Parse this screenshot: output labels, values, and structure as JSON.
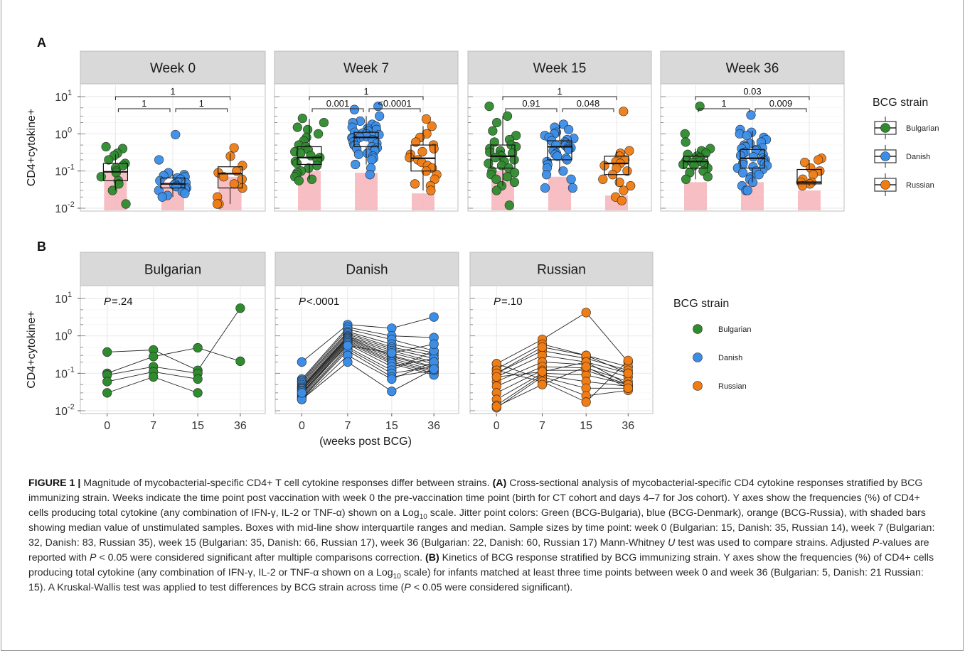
{
  "figure": {
    "panel_a_label": "A",
    "panel_b_label": "B",
    "ylabel": "CD4+cytokine+",
    "xlabel_b": "(weeks post BCG)",
    "y_ticks": [
      "10",
      "10",
      "10",
      "10"
    ],
    "y_tick_exponents": [
      "1",
      "0",
      "-1",
      "-2"
    ],
    "legend_title": "BCG strain",
    "legend_items": [
      "Bulgarian",
      "Danish",
      "Russian"
    ],
    "colors": {
      "Bulgarian": "#2e8b2e",
      "Danish": "#3b8ee8",
      "Russian": "#f07c12",
      "strip_bg": "#d9d9d9",
      "panel_border": "#bdbdbd",
      "median_bar": "#f6b8bd",
      "grid": "#ebebeb"
    }
  },
  "chart_data": [
    {
      "type": "scatter",
      "subtype": "boxplot-jitter",
      "panel": "A",
      "facet": "Week 0",
      "yscale": "log10",
      "ylim": [
        0.01,
        10
      ],
      "unstim_median_bar": [
        0.1,
        0.05,
        0.07
      ],
      "box": {
        "Bulgarian": {
          "q1": 0.055,
          "med": 0.095,
          "q3": 0.16,
          "lo": 0.03,
          "hi": 0.28
        },
        "Danish": {
          "q1": 0.035,
          "med": 0.045,
          "q3": 0.065,
          "lo": 0.02,
          "hi": 0.1
        },
        "Russian": {
          "q1": 0.035,
          "med": 0.085,
          "q3": 0.13,
          "lo": 0.013,
          "hi": 0.3
        }
      },
      "points": {
        "Bulgarian": [
          0.45,
          0.4,
          0.3,
          0.26,
          0.2,
          0.16,
          0.14,
          0.12,
          0.1,
          0.09,
          0.07,
          0.055,
          0.045,
          0.03,
          0.013
        ],
        "Danish": [
          0.95,
          0.2,
          0.09,
          0.08,
          0.075,
          0.07,
          0.065,
          0.06,
          0.055,
          0.05,
          0.048,
          0.045,
          0.042,
          0.04,
          0.038,
          0.035,
          0.033,
          0.03,
          0.028,
          0.025,
          0.022,
          0.02
        ],
        "Russian": [
          0.42,
          0.25,
          0.14,
          0.1,
          0.09,
          0.07,
          0.06,
          0.045,
          0.035,
          0.02,
          0.013,
          0.013
        ]
      },
      "comparisons": [
        {
          "groups": [
            "Bulgarian",
            "Danish"
          ],
          "p": "1"
        },
        {
          "groups": [
            "Danish",
            "Russian"
          ],
          "p": "1"
        },
        {
          "groups": [
            "Bulgarian",
            "Russian"
          ],
          "p": "1"
        }
      ]
    },
    {
      "type": "scatter",
      "subtype": "boxplot-jitter",
      "panel": "A",
      "facet": "Week 7",
      "yscale": "log10",
      "ylim": [
        0.01,
        10
      ],
      "unstim_median_bar": [
        0.1,
        0.09,
        0.025
      ],
      "box": {
        "Bulgarian": {
          "q1": 0.15,
          "med": 0.23,
          "q3": 0.45,
          "lo": 0.06,
          "hi": 2.5
        },
        "Danish": {
          "q1": 0.45,
          "med": 0.8,
          "q3": 1.1,
          "lo": 0.15,
          "hi": 3.0
        },
        "Russian": {
          "q1": 0.1,
          "med": 0.22,
          "q3": 0.5,
          "lo": 0.03,
          "hi": 1.6
        }
      },
      "points": {
        "Bulgarian": [
          2.6,
          2.0,
          1.5,
          1.3,
          1.0,
          0.8,
          0.65,
          0.5,
          0.45,
          0.38,
          0.33,
          0.3,
          0.26,
          0.23,
          0.2,
          0.18,
          0.16,
          0.14,
          0.12,
          0.1,
          0.09,
          0.08,
          0.07,
          0.06,
          0.055
        ],
        "Danish": [
          5.5,
          4.5,
          3.0,
          2.2,
          2.0,
          1.8,
          1.6,
          1.5,
          1.4,
          1.3,
          1.2,
          1.1,
          1.05,
          1.0,
          0.95,
          0.9,
          0.85,
          0.8,
          0.78,
          0.75,
          0.7,
          0.65,
          0.6,
          0.55,
          0.5,
          0.48,
          0.45,
          0.42,
          0.4,
          0.38,
          0.35,
          0.3,
          0.28,
          0.25,
          0.22,
          0.2,
          0.15,
          0.12,
          0.08
        ],
        "Russian": [
          2.5,
          1.6,
          1.0,
          0.8,
          0.6,
          0.5,
          0.4,
          0.33,
          0.28,
          0.23,
          0.2,
          0.17,
          0.14,
          0.12,
          0.1,
          0.08,
          0.06,
          0.045,
          0.04,
          0.03
        ]
      },
      "comparisons": [
        {
          "groups": [
            "Bulgarian",
            "Danish"
          ],
          "p": "0.001"
        },
        {
          "groups": [
            "Danish",
            "Russian"
          ],
          "p": "<0.0001"
        },
        {
          "groups": [
            "Bulgarian",
            "Russian"
          ],
          "p": "1"
        }
      ]
    },
    {
      "type": "scatter",
      "subtype": "boxplot-jitter",
      "panel": "A",
      "facet": "Week 15",
      "yscale": "log10",
      "ylim": [
        0.01,
        10
      ],
      "unstim_median_bar": [
        0.1,
        0.07,
        0.022
      ],
      "box": {
        "Bulgarian": {
          "q1": 0.12,
          "med": 0.25,
          "q3": 0.5,
          "lo": 0.04,
          "hi": 3.0
        },
        "Danish": {
          "q1": 0.2,
          "med": 0.45,
          "q3": 0.65,
          "lo": 0.1,
          "hi": 1.7
        },
        "Russian": {
          "q1": 0.08,
          "med": 0.16,
          "q3": 0.25,
          "lo": 0.04,
          "hi": 0.35
        }
      },
      "points": {
        "Bulgarian": [
          5.5,
          3.0,
          2.0,
          1.2,
          0.9,
          0.7,
          0.6,
          0.5,
          0.45,
          0.4,
          0.35,
          0.32,
          0.3,
          0.27,
          0.25,
          0.23,
          0.2,
          0.18,
          0.16,
          0.14,
          0.12,
          0.1,
          0.09,
          0.08,
          0.07,
          0.06,
          0.05,
          0.04,
          0.03,
          0.012
        ],
        "Danish": [
          1.8,
          1.5,
          1.3,
          1.1,
          1.0,
          0.9,
          0.8,
          0.75,
          0.7,
          0.65,
          0.6,
          0.55,
          0.5,
          0.48,
          0.45,
          0.42,
          0.4,
          0.38,
          0.35,
          0.3,
          0.28,
          0.25,
          0.22,
          0.2,
          0.18,
          0.15,
          0.12,
          0.1,
          0.08,
          0.06,
          0.035,
          0.035
        ],
        "Russian": [
          4.0,
          0.35,
          0.3,
          0.25,
          0.2,
          0.18,
          0.16,
          0.14,
          0.12,
          0.1,
          0.08,
          0.06,
          0.05,
          0.04,
          0.03,
          0.02,
          0.016
        ]
      },
      "comparisons": [
        {
          "groups": [
            "Bulgarian",
            "Danish"
          ],
          "p": "0.91"
        },
        {
          "groups": [
            "Danish",
            "Russian"
          ],
          "p": "0.048"
        },
        {
          "groups": [
            "Bulgarian",
            "Russian"
          ],
          "p": "1"
        }
      ]
    },
    {
      "type": "scatter",
      "subtype": "boxplot-jitter",
      "panel": "A",
      "facet": "Week 36",
      "yscale": "log10",
      "ylim": [
        0.01,
        10
      ],
      "unstim_median_bar": [
        0.05,
        0.05,
        0.03
      ],
      "box": {
        "Bulgarian": {
          "q1": 0.12,
          "med": 0.18,
          "q3": 0.25,
          "lo": 0.06,
          "hi": 0.4
        },
        "Danish": {
          "q1": 0.12,
          "med": 0.22,
          "q3": 0.38,
          "lo": 0.05,
          "hi": 1.2
        },
        "Russian": {
          "q1": 0.045,
          "med": 0.05,
          "q3": 0.11,
          "lo": 0.04,
          "hi": 0.2
        }
      },
      "points": {
        "Bulgarian": [
          5.5,
          1.0,
          0.6,
          0.4,
          0.35,
          0.3,
          0.28,
          0.25,
          0.23,
          0.22,
          0.2,
          0.19,
          0.18,
          0.17,
          0.16,
          0.15,
          0.14,
          0.12,
          0.1,
          0.09,
          0.07,
          0.06
        ],
        "Danish": [
          3.2,
          1.3,
          1.1,
          1.0,
          0.9,
          0.8,
          0.7,
          0.6,
          0.55,
          0.5,
          0.45,
          0.42,
          0.4,
          0.38,
          0.35,
          0.32,
          0.3,
          0.28,
          0.26,
          0.24,
          0.22,
          0.2,
          0.19,
          0.18,
          0.17,
          0.16,
          0.15,
          0.14,
          0.13,
          0.12,
          0.11,
          0.1,
          0.09,
          0.08,
          0.07,
          0.06,
          0.05,
          0.04,
          0.03,
          0.03
        ],
        "Russian": [
          0.22,
          0.2,
          0.17,
          0.12,
          0.1,
          0.08,
          0.06,
          0.05,
          0.05,
          0.045,
          0.04
        ]
      },
      "comparisons": [
        {
          "groups": [
            "Bulgarian",
            "Danish"
          ],
          "p": "1"
        },
        {
          "groups": [
            "Danish",
            "Russian"
          ],
          "p": "0.009"
        },
        {
          "groups": [
            "Bulgarian",
            "Russian"
          ],
          "p": "0.03"
        }
      ]
    },
    {
      "type": "line",
      "panel": "B",
      "facet": "Bulgarian",
      "p_label": "P",
      "p_value": "=.24",
      "x": [
        0,
        7,
        15,
        36
      ],
      "yscale": "log10",
      "ylim": [
        0.01,
        10
      ],
      "series": [
        {
          "values": [
            0.37,
            0.42,
            0.12,
            5.5
          ]
        },
        {
          "values": [
            0.1,
            0.28,
            0.48,
            0.21
          ]
        },
        {
          "values": [
            0.09,
            0.15,
            0.1,
            null
          ]
        },
        {
          "values": [
            0.06,
            0.11,
            0.07,
            null
          ]
        },
        {
          "values": [
            0.03,
            0.08,
            0.03,
            null
          ]
        }
      ]
    },
    {
      "type": "line",
      "panel": "B",
      "facet": "Danish",
      "p_label": "P",
      "p_value": "<.0001",
      "x": [
        0,
        7,
        15,
        36
      ],
      "yscale": "log10",
      "ylim": [
        0.01,
        10
      ],
      "series": [
        {
          "values": [
            0.2,
            2.0,
            1.6,
            3.2
          ]
        },
        {
          "values": [
            0.07,
            1.7,
            1.0,
            0.9
          ]
        },
        {
          "values": [
            0.065,
            1.5,
            0.8,
            0.4
          ]
        },
        {
          "values": [
            0.06,
            1.3,
            0.6,
            0.35
          ]
        },
        {
          "values": [
            0.055,
            1.2,
            0.5,
            0.3
          ]
        },
        {
          "values": [
            0.05,
            1.1,
            0.45,
            0.25
          ]
        },
        {
          "values": [
            0.045,
            1.0,
            0.4,
            0.2
          ]
        },
        {
          "values": [
            0.042,
            0.95,
            0.35,
            0.18
          ]
        },
        {
          "values": [
            0.04,
            0.9,
            0.3,
            0.15
          ]
        },
        {
          "values": [
            0.038,
            0.85,
            0.28,
            0.14
          ]
        },
        {
          "values": [
            0.035,
            0.8,
            0.25,
            0.12
          ]
        },
        {
          "values": [
            0.033,
            0.75,
            0.22,
            0.11
          ]
        },
        {
          "values": [
            0.03,
            0.7,
            0.2,
            0.1
          ]
        },
        {
          "values": [
            0.028,
            0.65,
            0.18,
            0.09
          ]
        },
        {
          "values": [
            0.026,
            0.6,
            0.15,
            0.25
          ]
        },
        {
          "values": [
            0.024,
            0.5,
            0.12,
            0.4
          ]
        },
        {
          "values": [
            0.022,
            0.45,
            0.1,
            0.15
          ]
        },
        {
          "values": [
            0.021,
            0.4,
            0.08,
            0.12
          ]
        },
        {
          "values": [
            0.02,
            0.3,
            0.07,
            0.2
          ]
        },
        {
          "values": [
            0.02,
            0.2,
            0.033,
            0.13
          ]
        },
        {
          "values": [
            0.03,
            0.55,
            0.35,
            0.6
          ]
        }
      ]
    },
    {
      "type": "line",
      "panel": "B",
      "facet": "Russian",
      "p_label": "P",
      "p_value": "=.10",
      "x": [
        0,
        7,
        15,
        36
      ],
      "yscale": "log10",
      "ylim": [
        0.01,
        10
      ],
      "series": [
        {
          "values": [
            0.18,
            0.8,
            4.2,
            0.2
          ]
        },
        {
          "values": [
            0.13,
            0.6,
            0.3,
            0.15
          ]
        },
        {
          "values": [
            0.1,
            0.4,
            0.25,
            0.12
          ]
        },
        {
          "values": [
            0.08,
            0.3,
            0.2,
            0.1
          ]
        },
        {
          "values": [
            0.06,
            0.2,
            0.17,
            0.08
          ]
        },
        {
          "values": [
            0.045,
            0.15,
            0.14,
            0.06
          ]
        },
        {
          "values": [
            0.03,
            0.12,
            0.12,
            0.05
          ]
        },
        {
          "values": [
            0.02,
            0.1,
            0.09,
            0.05
          ]
        },
        {
          "values": [
            0.014,
            0.09,
            0.06,
            0.045
          ]
        },
        {
          "values": [
            0.012,
            0.08,
            0.04,
            0.04
          ]
        },
        {
          "values": [
            0.18,
            0.07,
            0.025,
            0.035
          ]
        },
        {
          "values": [
            0.12,
            0.06,
            0.017,
            0.22
          ]
        },
        {
          "values": [
            0.1,
            0.5,
            0.3,
            0.1
          ]
        },
        {
          "values": [
            0.08,
            0.11,
            0.2,
            0.05
          ]
        },
        {
          "values": [
            0.013,
            0.05,
            0.15,
            0.04
          ]
        }
      ]
    }
  ],
  "caption": {
    "label": "FIGURE 1 |",
    "title": "Magnitude of mycobacterial-specific CD4+ T cell cytokine responses differ between strains.",
    "a_label": "(A)",
    "a_text_1": "Cross-sectional analysis of mycobacterial-specific CD4 cytokine responses stratified by BCG immunizing strain. Weeks indicate the time point post vaccination with week 0 the pre-vaccination time point (birth for CT cohort and days 4–7 for Jos cohort). Y axes show the frequencies (%) of CD4+ cells producing total cytokine (any combination of IFN-γ, IL-2 or TNF-α) shown on a Log",
    "a_sub_1": "10",
    "a_text_2": "scale. Jitter point colors: Green (BCG-Bulgaria), blue (BCG-Denmark), orange (BCG-Russia), with shaded bars showing median value of unstimulated samples. Boxes with mid-line show interquartile ranges and median. Sample sizes by time point: week 0 (Bulgarian: 15, Danish: 35, Russian 14), week 7 (Bulgarian: 32, Danish: 83, Russian 35), week 15 (Bulgarian: 35, Danish: 66, Russian 17), week 36 (Bulgarian: 22, Danish: 60, Russian 17) Mann-Whitney",
    "a_italic_u": "U",
    "a_text_3": "test was used to compare strains. Adjusted",
    "a_italic_p1": "P",
    "a_text_4": "-values are reported with",
    "a_italic_p2": "P",
    "a_text_5": "< 0.05 were considered significant after multiple comparisons correction.",
    "b_label": "(B)",
    "b_text_1": "Kinetics of BCG response stratified by BCG immunizing strain. Y axes show the frequencies (%) of CD4+ cells producing total cytokine (any combination of IFN-γ, IL-2 or TNF-α shown on a Log",
    "b_sub_1": "10",
    "b_text_2": "scale) for infants matched at least three time points between week 0 and week 36 (Bulgarian: 5, Danish: 21 Russian: 15). A Kruskal-Wallis test was applied to test differences by BCG strain across time (",
    "b_italic_p": "P",
    "b_text_3": "< 0.05 were considered significant)."
  }
}
